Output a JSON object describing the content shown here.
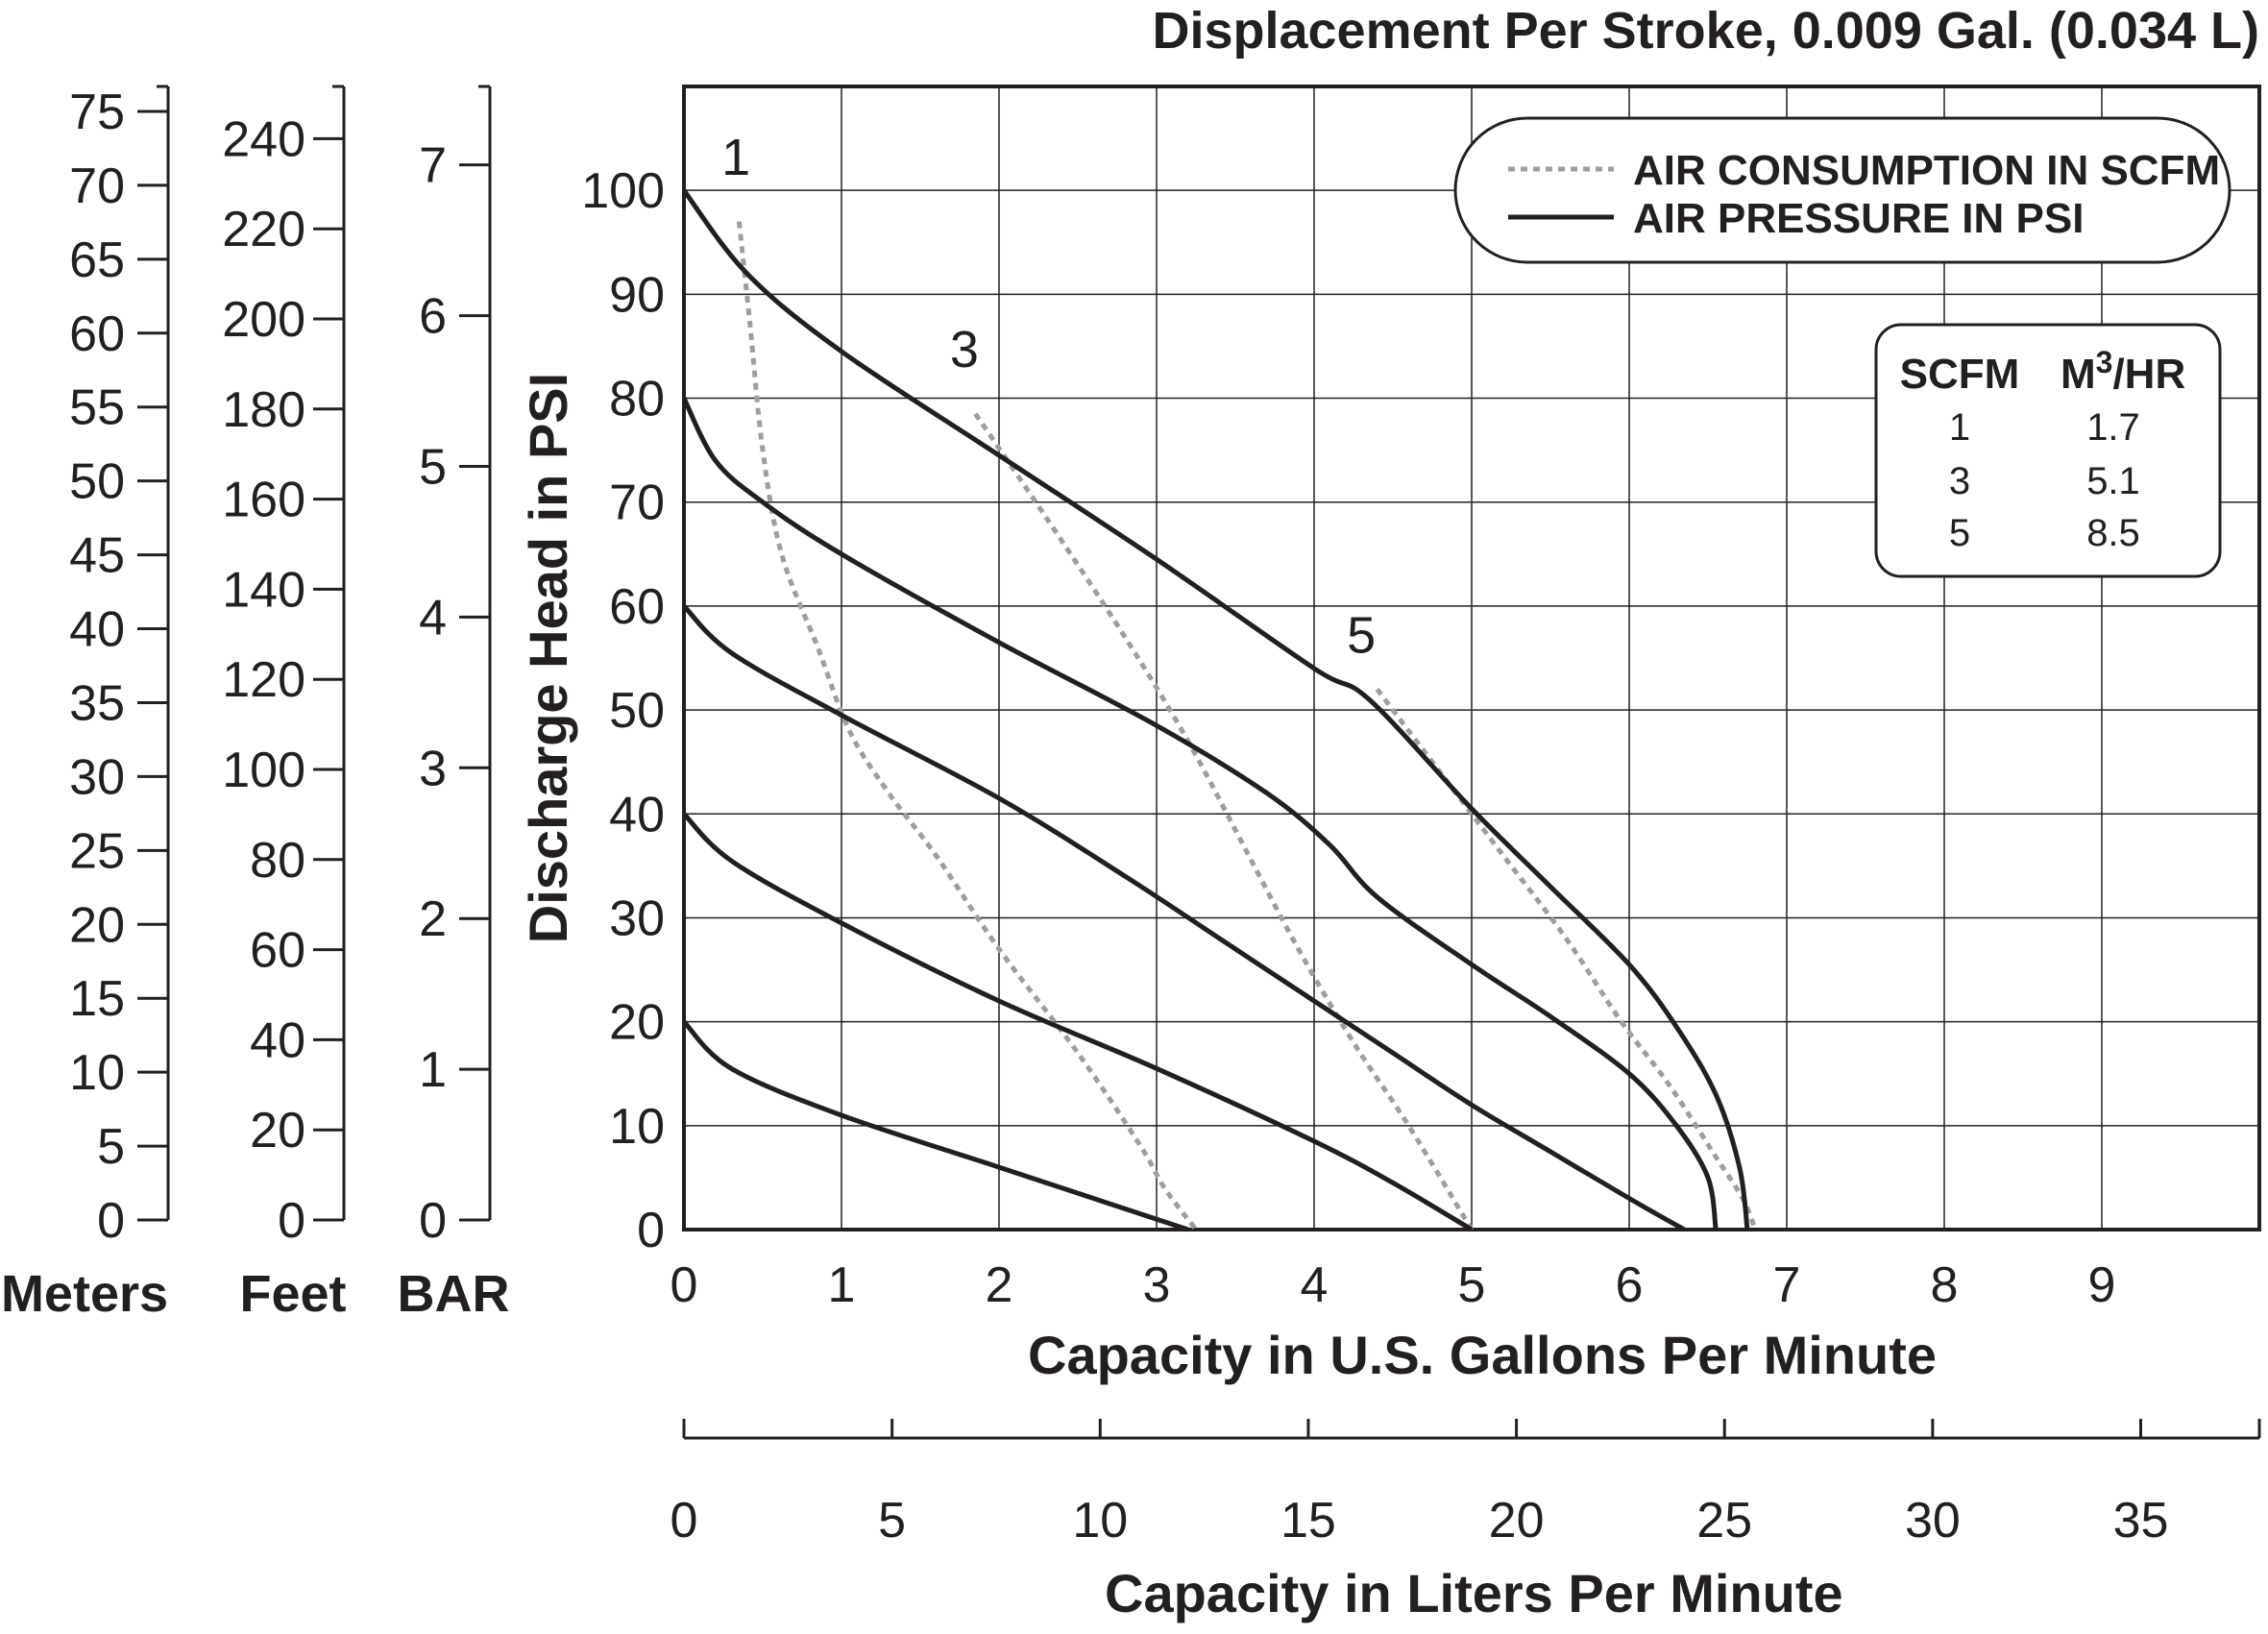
{
  "chart_data": {
    "type": "line",
    "title": "Displacement Per Stroke, 0.009 Gal. (0.034 L)",
    "xlabel": "Capacity in U.S. Gallons Per Minute",
    "ylabel": "Discharge Head in PSI",
    "xlim": [
      0,
      10
    ],
    "ylim": [
      0,
      110
    ],
    "x_ticks": [
      "0",
      "1",
      "2",
      "3",
      "4",
      "5",
      "6",
      "7",
      "8",
      "9"
    ],
    "y_ticks": [
      "0",
      "10",
      "20",
      "30",
      "40",
      "50",
      "60",
      "70",
      "80",
      "90",
      "100"
    ],
    "grid": true,
    "secondary_x_axis": {
      "label": "Capacity in Liters Per Minute",
      "ticks": [
        "0",
        "5",
        "10",
        "15",
        "20",
        "25",
        "30",
        "35"
      ]
    },
    "left_axes": [
      {
        "label": "Meters",
        "ticks": [
          "0",
          "5",
          "10",
          "15",
          "20",
          "25",
          "30",
          "35",
          "40",
          "45",
          "50",
          "55",
          "60",
          "65",
          "70",
          "75"
        ]
      },
      {
        "label": "Feet",
        "ticks": [
          "0",
          "20",
          "40",
          "60",
          "80",
          "100",
          "120",
          "140",
          "160",
          "180",
          "200",
          "220",
          "240"
        ]
      },
      {
        "label": "BAR",
        "ticks": [
          "0",
          "1",
          "2",
          "3",
          "4",
          "5",
          "6",
          "7"
        ]
      }
    ],
    "legend": {
      "placement": "top-right",
      "entries": [
        {
          "label": "AIR CONSUMPTION IN SCFM",
          "style": "dotted",
          "color": "#9e9e9e"
        },
        {
          "label": "AIR PRESSURE IN PSI",
          "style": "solid",
          "color": "#231f20"
        }
      ]
    },
    "conversion_table": {
      "headers": [
        "SCFM",
        "M",
        "3",
        "/HR"
      ],
      "rows": [
        [
          "1",
          "1.7"
        ],
        [
          "3",
          "5.1"
        ],
        [
          "5",
          "8.5"
        ]
      ]
    },
    "pressure_series": [
      {
        "psi": 100,
        "points": [
          [
            0,
            100
          ],
          [
            0.4,
            92
          ],
          [
            1,
            84.5
          ],
          [
            2,
            74.5
          ],
          [
            3,
            64.5
          ],
          [
            4,
            54
          ],
          [
            4.35,
            51
          ],
          [
            5,
            40.5
          ],
          [
            5.5,
            33
          ],
          [
            6,
            25.5
          ],
          [
            6.3,
            19.5
          ],
          [
            6.55,
            13
          ],
          [
            6.7,
            6
          ],
          [
            6.75,
            0
          ]
        ]
      },
      {
        "psi": 80,
        "points": [
          [
            0,
            80
          ],
          [
            0.2,
            74
          ],
          [
            0.5,
            70
          ],
          [
            1,
            65
          ],
          [
            2,
            56.5
          ],
          [
            3,
            48.5
          ],
          [
            3.7,
            42
          ],
          [
            4.1,
            37
          ],
          [
            4.4,
            32
          ],
          [
            5,
            25.5
          ],
          [
            5.5,
            20.5
          ],
          [
            6,
            15
          ],
          [
            6.3,
            10
          ],
          [
            6.5,
            5
          ],
          [
            6.55,
            0
          ]
        ]
      },
      {
        "psi": 60,
        "points": [
          [
            0,
            60
          ],
          [
            0.3,
            55.5
          ],
          [
            1,
            49.5
          ],
          [
            2,
            41.5
          ],
          [
            2.8,
            34
          ],
          [
            3.5,
            27
          ],
          [
            4,
            22
          ],
          [
            4.5,
            17
          ],
          [
            5,
            12
          ],
          [
            5.5,
            7.5
          ],
          [
            6,
            3
          ],
          [
            6.35,
            0
          ]
        ]
      },
      {
        "psi": 40,
        "points": [
          [
            0,
            40
          ],
          [
            0.3,
            35.5
          ],
          [
            1,
            29.5
          ],
          [
            2,
            22
          ],
          [
            3,
            15.5
          ],
          [
            4,
            8.5
          ],
          [
            4.5,
            4.5
          ],
          [
            5,
            0
          ]
        ]
      },
      {
        "psi": 20,
        "points": [
          [
            0,
            20
          ],
          [
            0.3,
            15.5
          ],
          [
            1,
            11
          ],
          [
            2,
            6
          ],
          [
            2.8,
            2
          ],
          [
            3.2,
            0
          ]
        ]
      }
    ],
    "air_consumption_series": [
      {
        "scfm": "1",
        "points": [
          [
            0.35,
            97
          ],
          [
            0.42,
            87
          ],
          [
            0.5,
            75
          ],
          [
            0.62,
            65
          ],
          [
            0.85,
            56
          ],
          [
            1.05,
            48
          ],
          [
            1.3,
            42
          ],
          [
            1.6,
            36
          ],
          [
            2,
            27
          ],
          [
            2.5,
            17
          ],
          [
            2.9,
            8
          ],
          [
            3.05,
            4
          ],
          [
            3.25,
            0
          ]
        ]
      },
      {
        "scfm": "3",
        "points": [
          [
            1.85,
            78.5
          ],
          [
            2.3,
            68.5
          ],
          [
            2.8,
            57
          ],
          [
            3.2,
            47
          ],
          [
            3.55,
            37
          ],
          [
            3.9,
            27
          ],
          [
            4.25,
            18
          ],
          [
            4.6,
            10
          ],
          [
            5,
            0
          ]
        ]
      },
      {
        "scfm": "5",
        "points": [
          [
            4.4,
            52
          ],
          [
            4.8,
            44
          ],
          [
            5.2,
            36
          ],
          [
            5.6,
            28
          ],
          [
            5.95,
            20
          ],
          [
            6.25,
            14
          ],
          [
            6.55,
            7
          ],
          [
            6.72,
            3
          ],
          [
            6.8,
            0
          ]
        ]
      }
    ],
    "curve_labels": [
      {
        "text": "1",
        "x": 0.33,
        "y": 101.5
      },
      {
        "text": "3",
        "x": 1.78,
        "y": 83
      },
      {
        "text": "5",
        "x": 4.3,
        "y": 55.5
      }
    ]
  }
}
